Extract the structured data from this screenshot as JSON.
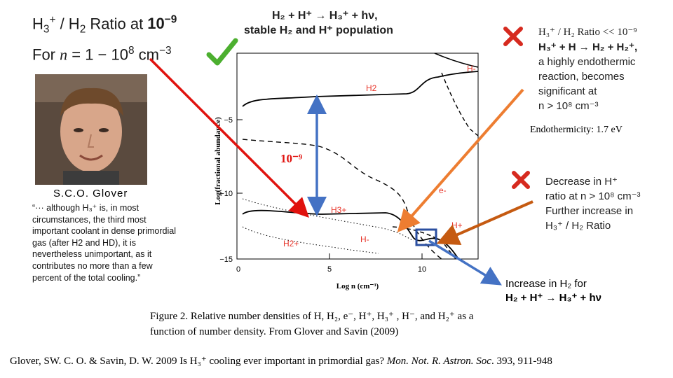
{
  "header": {
    "ratio_title_prefix": "H",
    "ratio_title_mid": " / H",
    "ratio_title_suffix": " Ratio at ",
    "ratio_value": "10",
    "ratio_exp": "−9",
    "for_line_prefix": "For ",
    "for_n": "n",
    "for_range": " = 1   − 10",
    "for_exp": "8",
    "for_unit": " cm",
    "for_unit_exp": "−3",
    "reaction_line": "H₂ + H⁺ → H₃⁺ + hν,",
    "stable_line": "stable H₂ and H⁺ population"
  },
  "person": {
    "name": "S.C.O. Glover",
    "quote": "“··· although H₃⁺ is, in most circumstances, the third most important coolant in dense primordial gas (after H2 and HD), it is nevertheless unimportant, as it contributes no more than a few percent of the total cooling.”"
  },
  "plot": {
    "y_axis_label": "Log(fractional abundance)",
    "x_axis_label": "Log n  (cm⁻³)",
    "y_ticks": [
      "−5",
      "−10",
      "−15"
    ],
    "x_ticks": [
      "0",
      "5",
      "10"
    ],
    "curve_labels": {
      "h2": "H2",
      "h_minus_top": "H-",
      "e_minus": "e-",
      "h3_plus": "H3+",
      "h_plus": "H+",
      "h2_plus": "H2+",
      "h_minus": "H-"
    },
    "ratio_marker": "10⁻⁹"
  },
  "notes": {
    "top_right_line1": "H₃⁺ / H₂ Ratio << 10⁻⁹",
    "top_right_line2": "H₃⁺ + H → H₂ + H₂⁺,",
    "top_right_line3": "a highly endothermic",
    "top_right_line4": "reaction, becomes",
    "top_right_line5": "significant at",
    "top_right_line6": "n > 10⁸ cm⁻³",
    "endothermicity": "Endothermicity: 1.7 eV",
    "mid_right_line1": "Decrease in H⁺",
    "mid_right_line2": "ratio at  n > 10⁸ cm⁻³",
    "mid_right_line3": "Further increase in",
    "mid_right_line4": "H₃⁺ / H₂ Ratio",
    "bottom_right_line1": "Increase in H₂ for",
    "bottom_right_line2": "H₂ + H⁺ → H₃⁺ + hν"
  },
  "caption": {
    "line1": "Figure 2. Relative number densities of H, H₂, e⁻, H⁺, H₃⁺ , H⁻, and H₂⁺ as a",
    "line2": "function of number density. From Glover and Savin (2009)"
  },
  "reference": {
    "authors": "Glover, SW. C. O. & Savin, D. W. 2009 Is H₃⁺ cooling ever important in primordial gas? ",
    "journal": "Mon. Not. R. Astron. Soc",
    "tail": ". 393, 911-948"
  },
  "colors": {
    "red_arrow": "#e0120e",
    "blue_arrow": "#4472c4",
    "orange_arrow": "#ed7d31",
    "brown_arrow": "#c55a11",
    "plot_label_red": "#e8352a",
    "check_green": "#4caf2f",
    "cross_red": "#d62a1f"
  }
}
